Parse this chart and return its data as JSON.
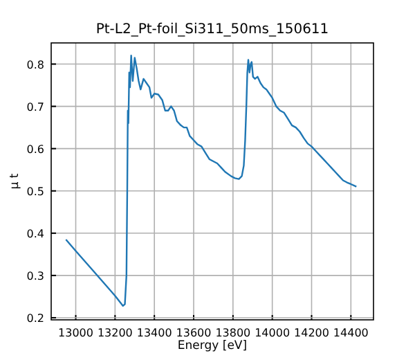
{
  "chart_data": {
    "type": "line",
    "title": "Pt-L2_Pt-foil_Si311_50ms_150611",
    "xlabel": "Energy [eV]",
    "ylabel": "μ t",
    "xlim": [
      12875,
      14515
    ],
    "xticks": [
      13000,
      13200,
      13400,
      13600,
      13800,
      14000,
      14200,
      14400
    ],
    "ylim": [
      0.195,
      0.85
    ],
    "yticks": [
      0.2,
      0.3,
      0.4,
      0.5,
      0.6,
      0.7,
      0.8
    ],
    "grid": true,
    "series": [
      {
        "color": "#1f77b4",
        "x": [
          12950,
          13000,
          13100,
          13200,
          13240,
          13250,
          13258,
          13262,
          13265,
          13268,
          13272,
          13276,
          13282,
          13290,
          13300,
          13310,
          13320,
          13330,
          13345,
          13360,
          13375,
          13385,
          13400,
          13420,
          13440,
          13455,
          13470,
          13485,
          13500,
          13515,
          13535,
          13550,
          13565,
          13580,
          13600,
          13620,
          13640,
          13660,
          13680,
          13700,
          13720,
          13740,
          13760,
          13790,
          13810,
          13830,
          13845,
          13855,
          13862,
          13868,
          13873,
          13878,
          13884,
          13890,
          13895,
          13902,
          13912,
          13925,
          13940,
          13955,
          13970,
          13985,
          14000,
          14020,
          14040,
          14060,
          14080,
          14100,
          14120,
          14140,
          14160,
          14180,
          14200,
          14220,
          14240,
          14260,
          14280,
          14300,
          14320,
          14340,
          14360,
          14380,
          14400,
          14428
        ],
        "values": [
          0.385,
          0.358,
          0.305,
          0.252,
          0.228,
          0.232,
          0.3,
          0.5,
          0.69,
          0.66,
          0.78,
          0.745,
          0.82,
          0.76,
          0.815,
          0.79,
          0.76,
          0.74,
          0.765,
          0.755,
          0.745,
          0.72,
          0.73,
          0.728,
          0.715,
          0.69,
          0.69,
          0.7,
          0.69,
          0.665,
          0.655,
          0.65,
          0.65,
          0.63,
          0.62,
          0.61,
          0.605,
          0.59,
          0.575,
          0.57,
          0.565,
          0.555,
          0.545,
          0.535,
          0.53,
          0.528,
          0.535,
          0.56,
          0.62,
          0.7,
          0.78,
          0.81,
          0.78,
          0.8,
          0.805,
          0.77,
          0.765,
          0.77,
          0.755,
          0.745,
          0.74,
          0.73,
          0.72,
          0.7,
          0.69,
          0.685,
          0.67,
          0.655,
          0.65,
          0.64,
          0.625,
          0.612,
          0.605,
          0.595,
          0.585,
          0.575,
          0.565,
          0.555,
          0.545,
          0.535,
          0.525,
          0.52,
          0.516,
          0.51
        ]
      }
    ]
  }
}
